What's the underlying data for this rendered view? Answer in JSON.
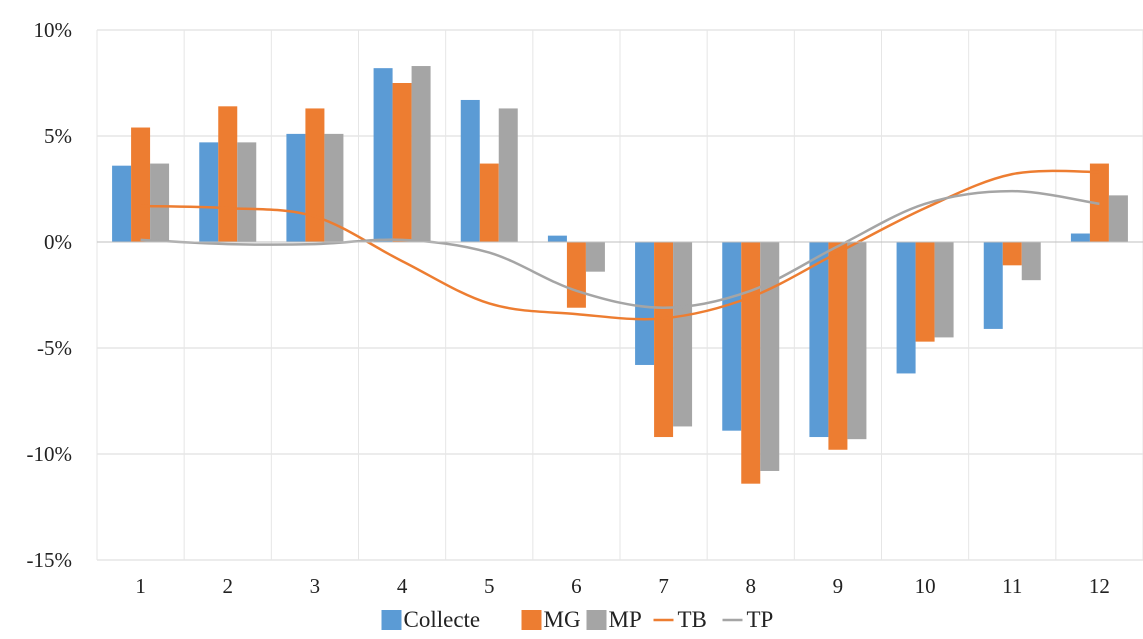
{
  "chart_data": {
    "type": "bar",
    "categories": [
      "1",
      "2",
      "3",
      "4",
      "5",
      "6",
      "7",
      "8",
      "9",
      "10",
      "11",
      "12"
    ],
    "series": [
      {
        "name": "Collecte",
        "kind": "bar",
        "color": "#5B9BD5",
        "values": [
          3.6,
          4.7,
          5.1,
          8.2,
          6.7,
          0.3,
          -5.8,
          -8.9,
          -9.2,
          -6.2,
          -4.1,
          0.4
        ]
      },
      {
        "name": "MG",
        "kind": "bar",
        "color": "#ED7D31",
        "values": [
          5.4,
          6.4,
          6.3,
          7.5,
          3.7,
          -3.1,
          -9.2,
          -11.4,
          -9.8,
          -4.7,
          -1.1,
          3.7
        ]
      },
      {
        "name": "MP",
        "kind": "bar",
        "color": "#A5A5A5",
        "values": [
          3.7,
          4.7,
          5.1,
          8.3,
          6.3,
          -1.4,
          -8.7,
          -10.8,
          -9.3,
          -4.5,
          -1.8,
          2.2
        ]
      },
      {
        "name": "TB",
        "kind": "line",
        "color": "#ED7D31",
        "values": [
          1.7,
          1.6,
          1.2,
          -0.9,
          -2.9,
          -3.4,
          -3.6,
          -2.6,
          -0.5,
          1.6,
          3.2,
          3.3
        ]
      },
      {
        "name": "TP",
        "kind": "line",
        "color": "#A5A5A5",
        "values": [
          0.1,
          -0.1,
          -0.1,
          0.1,
          -0.5,
          -2.3,
          -3.1,
          -2.3,
          -0.2,
          1.8,
          2.4,
          1.8
        ]
      }
    ],
    "ylim": [
      -15,
      10
    ],
    "yticks": [
      -15,
      -10,
      -5,
      0,
      5,
      10
    ],
    "ytick_labels": [
      "-15%",
      "-10%",
      "-5%",
      "0%",
      "5%",
      "10%"
    ],
    "grid": true,
    "legend_position": "bottom"
  }
}
